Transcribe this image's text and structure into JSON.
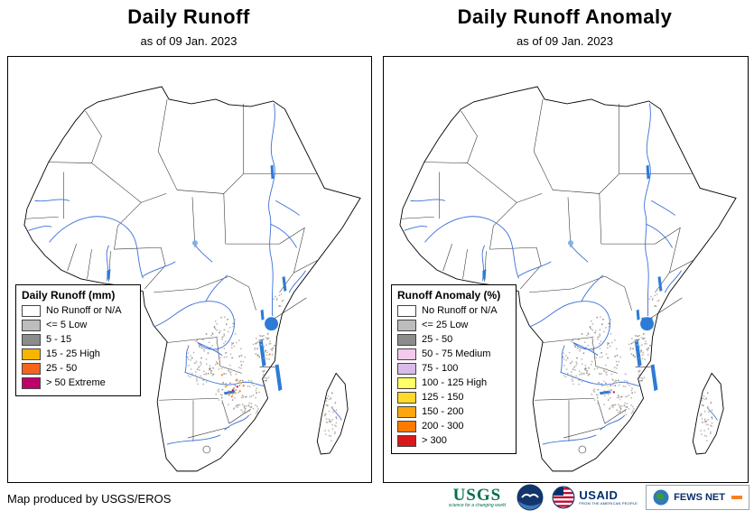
{
  "panels": {
    "runoff": {
      "title": "Daily Runoff",
      "subtitle": "as of 09 Jan. 2023",
      "legend": {
        "title": "Daily Runoff (mm)",
        "items": [
          {
            "label": "No Runoff or N/A",
            "color": "#ffffff"
          },
          {
            "label": "<= 5 Low",
            "color": "#bdbdbd"
          },
          {
            "label": "5 - 15",
            "color": "#8c8c8c"
          },
          {
            "label": "15 - 25 High",
            "color": "#f7b500"
          },
          {
            "label": "25 - 50",
            "color": "#f4641d"
          },
          {
            "label": "> 50 Extreme",
            "color": "#c0006a"
          }
        ]
      }
    },
    "anomaly": {
      "title": "Daily Runoff Anomaly",
      "subtitle": "as of 09 Jan. 2023",
      "legend": {
        "title": "Runoff Anomaly (%)",
        "items": [
          {
            "label": "No Runoff or N/A",
            "color": "#ffffff"
          },
          {
            "label": "<= 25 Low",
            "color": "#bdbdbd"
          },
          {
            "label": "25 - 50",
            "color": "#8c8c8c"
          },
          {
            "label": "50 - 75 Medium",
            "color": "#f3c9ec"
          },
          {
            "label": "75 - 100",
            "color": "#d9bbea"
          },
          {
            "label": "100 - 125 High",
            "color": "#ffff66"
          },
          {
            "label": "125 - 150",
            "color": "#ffd92b"
          },
          {
            "label": "150 - 200",
            "color": "#ffa60f"
          },
          {
            "label": "200 - 300",
            "color": "#ff7a00"
          },
          {
            "label": "> 300",
            "color": "#d7191c"
          }
        ]
      }
    }
  },
  "footer": {
    "credit": "Map produced by USGS/EROS",
    "logos": [
      {
        "name": "USGS",
        "tagline": "science for a changing world"
      },
      {
        "name": "NOAA"
      },
      {
        "name": "USAID",
        "tagline": "FROM THE AMERICAN PEOPLE"
      },
      {
        "name": "FEWS NET"
      }
    ]
  }
}
